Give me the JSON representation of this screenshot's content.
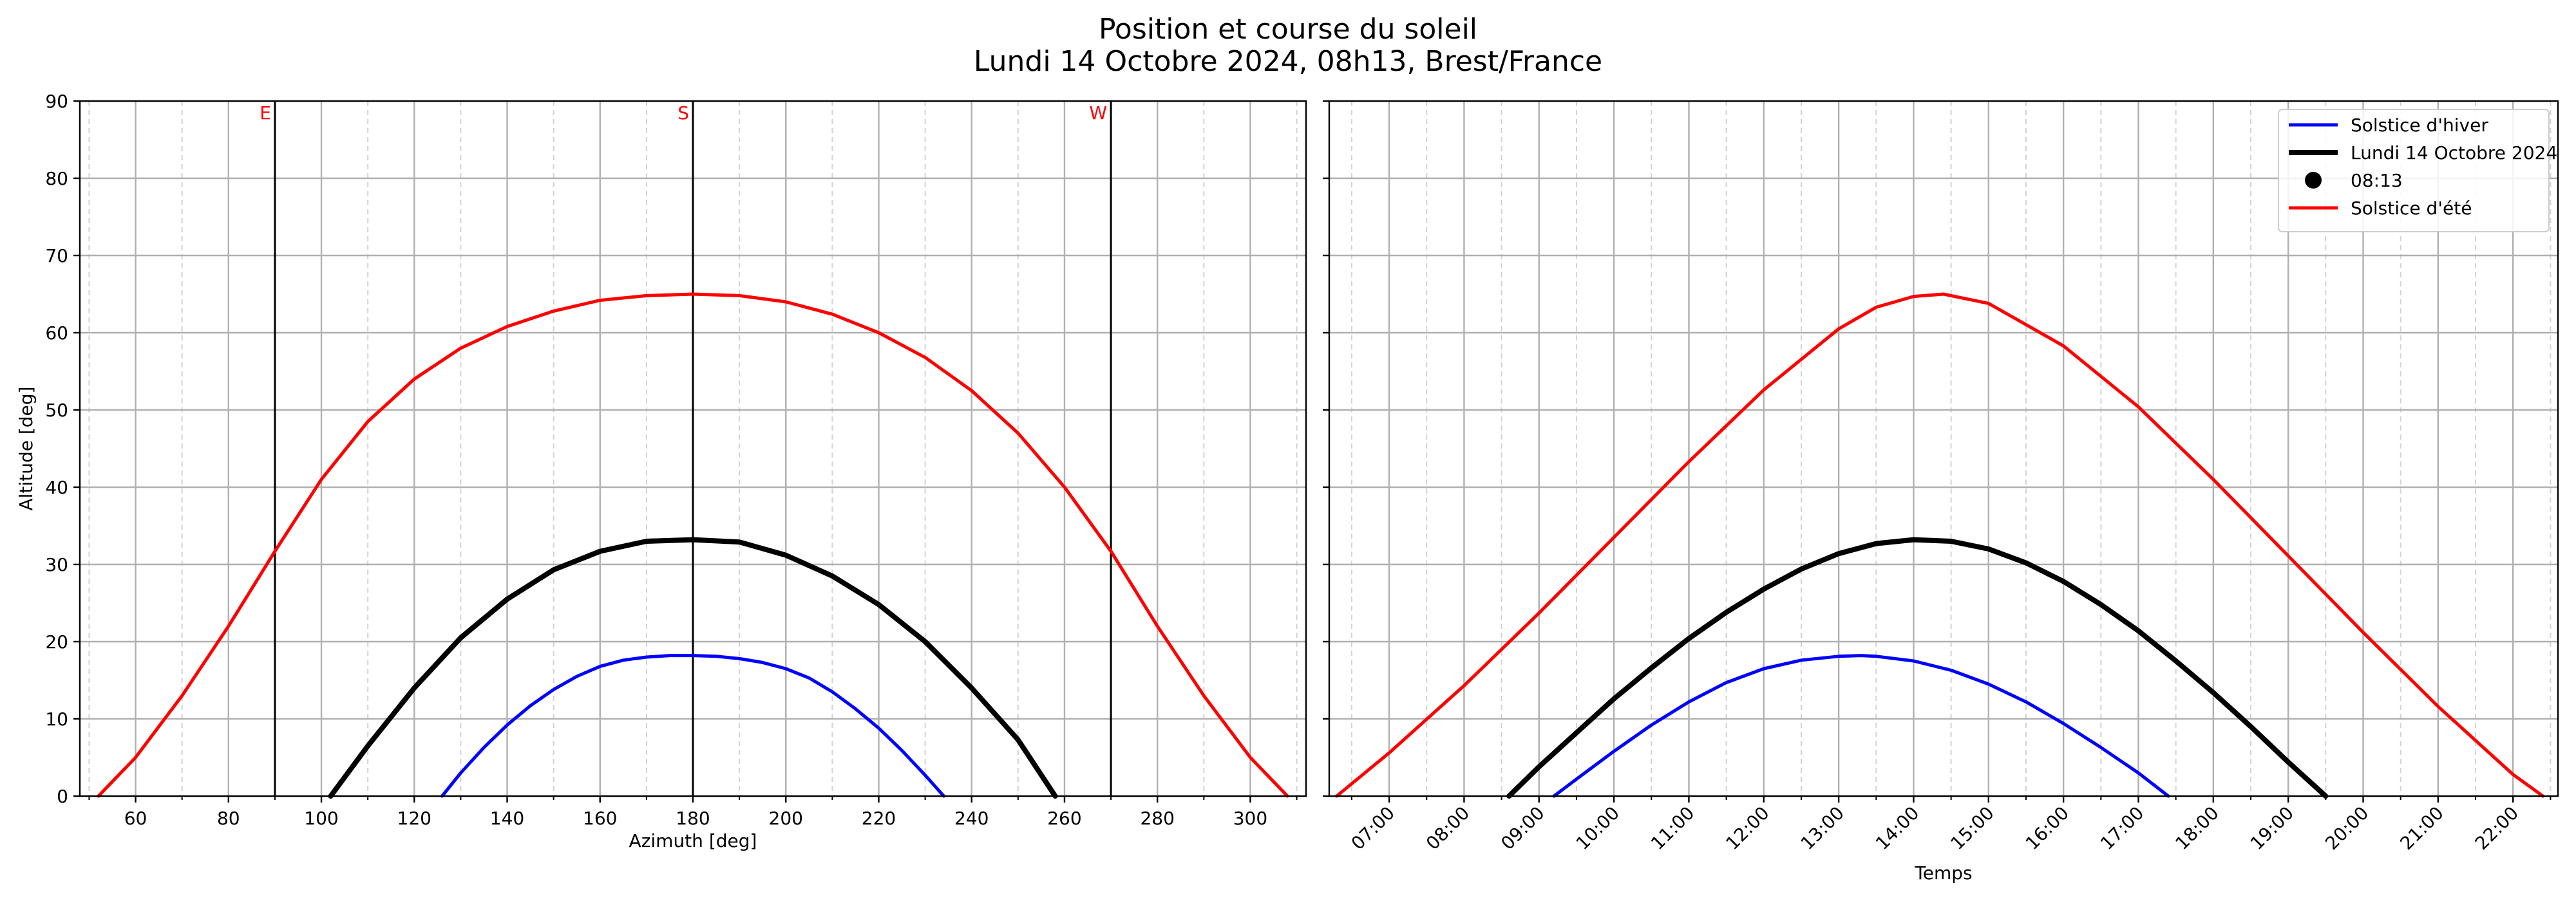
{
  "figure": {
    "title_line1": "Position et course du soleil",
    "title_line2": "Lundi 14 Octobre 2024, 08h13, Brest/France"
  },
  "colors": {
    "winter": "#0000ff",
    "today": "#000000",
    "summer": "#ff0000",
    "cardinal_label": "#ff0000",
    "grid_major": "#b0b0b0",
    "grid_minor": "#d3d3d3"
  },
  "chart_data": [
    {
      "type": "line",
      "xlabel": "Azimuth [deg]",
      "ylabel": "Altitude [deg]",
      "xlim": [
        48,
        312
      ],
      "ylim": [
        0,
        90
      ],
      "xticks": [
        60,
        80,
        100,
        120,
        140,
        160,
        180,
        200,
        220,
        240,
        260,
        280,
        300
      ],
      "yticks": [
        0,
        10,
        20,
        30,
        40,
        50,
        60,
        70,
        80,
        90
      ],
      "minor_xtick_step": 10,
      "grid": true,
      "reference_lines": [
        {
          "x": 90,
          "label": "E"
        },
        {
          "x": 180,
          "label": "S"
        },
        {
          "x": 270,
          "label": "W"
        }
      ],
      "series": [
        {
          "name": "Solstice d'hiver",
          "color": "#0000ff",
          "x": [
            126,
            130,
            135,
            140,
            145,
            150,
            155,
            160,
            165,
            170,
            175,
            180,
            185,
            190,
            195,
            200,
            205,
            210,
            215,
            220,
            225,
            230,
            234
          ],
          "y": [
            0,
            3,
            6.3,
            9.2,
            11.7,
            13.8,
            15.5,
            16.8,
            17.6,
            18.0,
            18.2,
            18.2,
            18.1,
            17.8,
            17.3,
            16.5,
            15.3,
            13.5,
            11.3,
            8.8,
            5.9,
            2.7,
            0
          ]
        },
        {
          "name": "Lundi 14 Octobre 2024",
          "color": "#000000",
          "x": [
            102,
            110,
            120,
            130,
            140,
            150,
            160,
            170,
            180,
            190,
            200,
            210,
            220,
            230,
            240,
            250,
            258
          ],
          "y": [
            0,
            6.5,
            14,
            20.5,
            25.5,
            29.3,
            31.7,
            33,
            33.2,
            32.9,
            31.2,
            28.5,
            24.8,
            20,
            14,
            7.3,
            0
          ]
        },
        {
          "name": "Solstice d'été",
          "color": "#ff0000",
          "x": [
            52,
            60,
            70,
            80,
            90,
            100,
            110,
            120,
            130,
            140,
            150,
            160,
            170,
            180,
            190,
            200,
            210,
            220,
            230,
            240,
            250,
            260,
            270,
            280,
            290,
            300,
            308
          ],
          "y": [
            0,
            5,
            13,
            22,
            31.7,
            41,
            48.5,
            54,
            58,
            60.8,
            62.8,
            64.2,
            64.8,
            65,
            64.8,
            64,
            62.4,
            60,
            56.8,
            52.5,
            47,
            40,
            31.7,
            22,
            13,
            5,
            0
          ]
        }
      ]
    },
    {
      "type": "line",
      "xlabel": "Temps",
      "ylabel": "",
      "xlim": [
        6.2,
        22.6
      ],
      "ylim": [
        0,
        90
      ],
      "xticks": [
        7,
        8,
        9,
        10,
        11,
        12,
        13,
        14,
        15,
        16,
        17,
        18,
        19,
        20,
        21,
        22
      ],
      "xtick_labels": [
        "07:00",
        "08:00",
        "09:00",
        "10:00",
        "11:00",
        "12:00",
        "13:00",
        "14:00",
        "15:00",
        "16:00",
        "17:00",
        "18:00",
        "19:00",
        "20:00",
        "21:00",
        "22:00"
      ],
      "yticks": [
        0,
        10,
        20,
        30,
        40,
        50,
        60,
        70,
        80,
        90
      ],
      "minor_xtick_step": 0.5,
      "grid": true,
      "legend": "top-right",
      "legend_entries": [
        {
          "label": "Solstice d'hiver",
          "kind": "line",
          "color": "#0000ff"
        },
        {
          "label": "Lundi 14 Octobre 2024",
          "kind": "line",
          "color": "#000000"
        },
        {
          "label": "08:13",
          "kind": "marker",
          "color": "#000000"
        },
        {
          "label": "Solstice d'été",
          "kind": "line",
          "color": "#ff0000"
        }
      ],
      "series": [
        {
          "name": "Solstice d'hiver",
          "color": "#0000ff",
          "x": [
            9.2,
            9.5,
            10,
            10.5,
            11,
            11.5,
            12,
            12.5,
            13,
            13.3,
            13.5,
            14,
            14.5,
            15,
            15.5,
            16,
            16.5,
            17,
            17.4
          ],
          "y": [
            0,
            2.2,
            5.8,
            9.2,
            12.2,
            14.7,
            16.5,
            17.6,
            18.1,
            18.2,
            18.1,
            17.5,
            16.3,
            14.5,
            12.2,
            9.4,
            6.3,
            3,
            0
          ]
        },
        {
          "name": "Lundi 14 Octobre 2024",
          "color": "#000000",
          "x": [
            8.6,
            9,
            9.5,
            10,
            10.5,
            11,
            11.5,
            12,
            12.5,
            13,
            13.5,
            14,
            14.5,
            15,
            15.5,
            16,
            16.5,
            17,
            17.5,
            18,
            18.5,
            19,
            19.5
          ],
          "y": [
            0,
            3.8,
            8.2,
            12.6,
            16.6,
            20.4,
            23.8,
            26.8,
            29.4,
            31.4,
            32.7,
            33.2,
            33,
            32,
            30.2,
            27.8,
            24.8,
            21.4,
            17.5,
            13.4,
            9,
            4.4,
            0
          ]
        },
        {
          "name": "Solstice d'été",
          "color": "#ff0000",
          "x": [
            6.3,
            7,
            8,
            9,
            10,
            11,
            12,
            13,
            13.5,
            14,
            14.4,
            15,
            16,
            17,
            18,
            19,
            20,
            21,
            22,
            22.4
          ],
          "y": [
            0,
            5.6,
            14.3,
            23.7,
            33.5,
            43.3,
            52.6,
            60.5,
            63.3,
            64.7,
            65,
            63.8,
            58.3,
            50.4,
            41,
            31.1,
            21.2,
            11.6,
            2.8,
            0
          ]
        }
      ]
    }
  ]
}
